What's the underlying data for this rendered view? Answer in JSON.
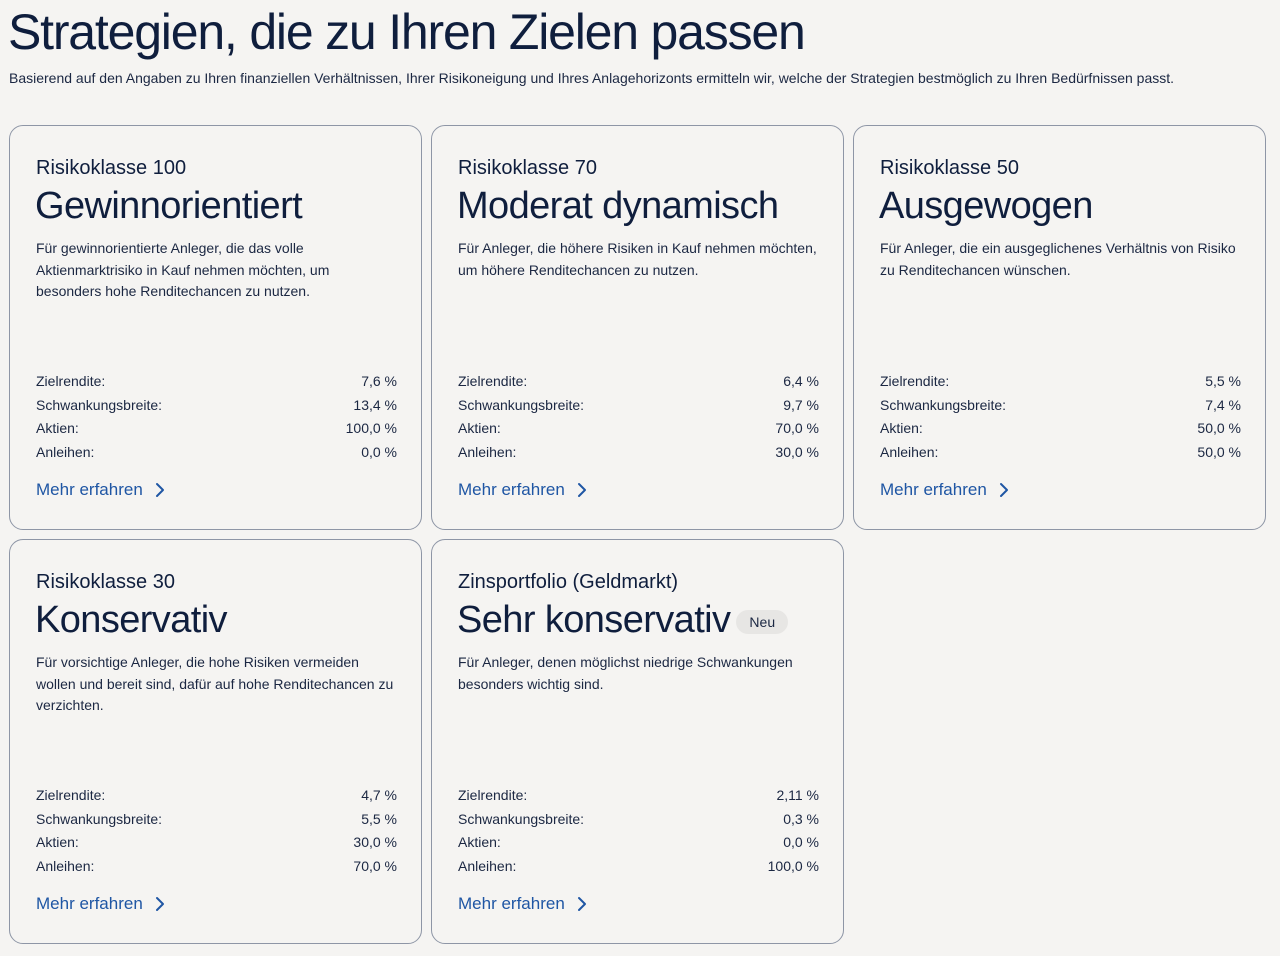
{
  "page": {
    "title": "Strategien, die zu Ihren Zielen passen",
    "intro": "Basierend auf den Angaben zu Ihren finanziellen Verhältnissen, Ihrer Risikoneigung und Ihres Anlagehorizonts ermitteln wir, welche der Strategien bestmöglich zu Ihren Bedürfnissen passt."
  },
  "colors": {
    "background": "#f5f4f2",
    "text": "#0f1e3d",
    "link": "#1f56a4",
    "border": "#8e96a6"
  },
  "link_icon": "chevron-right-icon",
  "cards": [
    {
      "kicker": "Risikoklasse 100",
      "heading": "Gewinnorientiert",
      "badge": "",
      "description": "Für gewinnorientierte Anleger, die das volle Aktienmarktrisiko in Kauf nehmen möchten, um besonders hohe Renditechancen zu nutzen.",
      "metrics": [
        {
          "label": "Zielrendite:",
          "value": "7,6 %"
        },
        {
          "label": "Schwankungsbreite:",
          "value": "13,4 %"
        },
        {
          "label": "Aktien:",
          "value": "100,0 %"
        },
        {
          "label": "Anleihen:",
          "value": "0,0 %"
        }
      ],
      "link": "Mehr erfahren"
    },
    {
      "kicker": "Risikoklasse 70",
      "heading": "Moderat dynamisch",
      "badge": "",
      "description": "Für Anleger, die höhere Risiken in Kauf nehmen möchten, um höhere Renditechancen zu nutzen.",
      "metrics": [
        {
          "label": "Zielrendite:",
          "value": "6,4 %"
        },
        {
          "label": "Schwankungsbreite:",
          "value": "9,7 %"
        },
        {
          "label": "Aktien:",
          "value": "70,0 %"
        },
        {
          "label": "Anleihen:",
          "value": "30,0 %"
        }
      ],
      "link": "Mehr erfahren"
    },
    {
      "kicker": "Risikoklasse 50",
      "heading": "Ausgewogen",
      "badge": "",
      "description": "Für Anleger, die ein ausgeglichenes Verhältnis von Risiko zu Renditechancen wünschen.",
      "metrics": [
        {
          "label": "Zielrendite:",
          "value": "5,5 %"
        },
        {
          "label": "Schwankungsbreite:",
          "value": "7,4 %"
        },
        {
          "label": "Aktien:",
          "value": "50,0 %"
        },
        {
          "label": "Anleihen:",
          "value": "50,0 %"
        }
      ],
      "link": "Mehr erfahren"
    },
    {
      "kicker": "Risikoklasse 30",
      "heading": "Konservativ",
      "badge": "",
      "description": "Für vorsichtige Anleger, die hohe Risiken vermeiden wollen und bereit sind, dafür auf hohe Renditechancen zu verzichten.",
      "metrics": [
        {
          "label": "Zielrendite:",
          "value": "4,7 %"
        },
        {
          "label": "Schwankungsbreite:",
          "value": "5,5 %"
        },
        {
          "label": "Aktien:",
          "value": "30,0 %"
        },
        {
          "label": "Anleihen:",
          "value": "70,0 %"
        }
      ],
      "link": "Mehr erfahren"
    },
    {
      "kicker": "Zinsportfolio (Geldmarkt)",
      "heading": "Sehr konservativ",
      "badge": "Neu",
      "description": "Für Anleger, denen möglichst niedrige Schwankungen besonders wichtig sind.",
      "metrics": [
        {
          "label": "Zielrendite:",
          "value": "2,11 %"
        },
        {
          "label": "Schwankungsbreite:",
          "value": "0,3 %"
        },
        {
          "label": "Aktien:",
          "value": "0,0 %"
        },
        {
          "label": "Anleihen:",
          "value": "100,0 %"
        }
      ],
      "link": "Mehr erfahren"
    }
  ]
}
